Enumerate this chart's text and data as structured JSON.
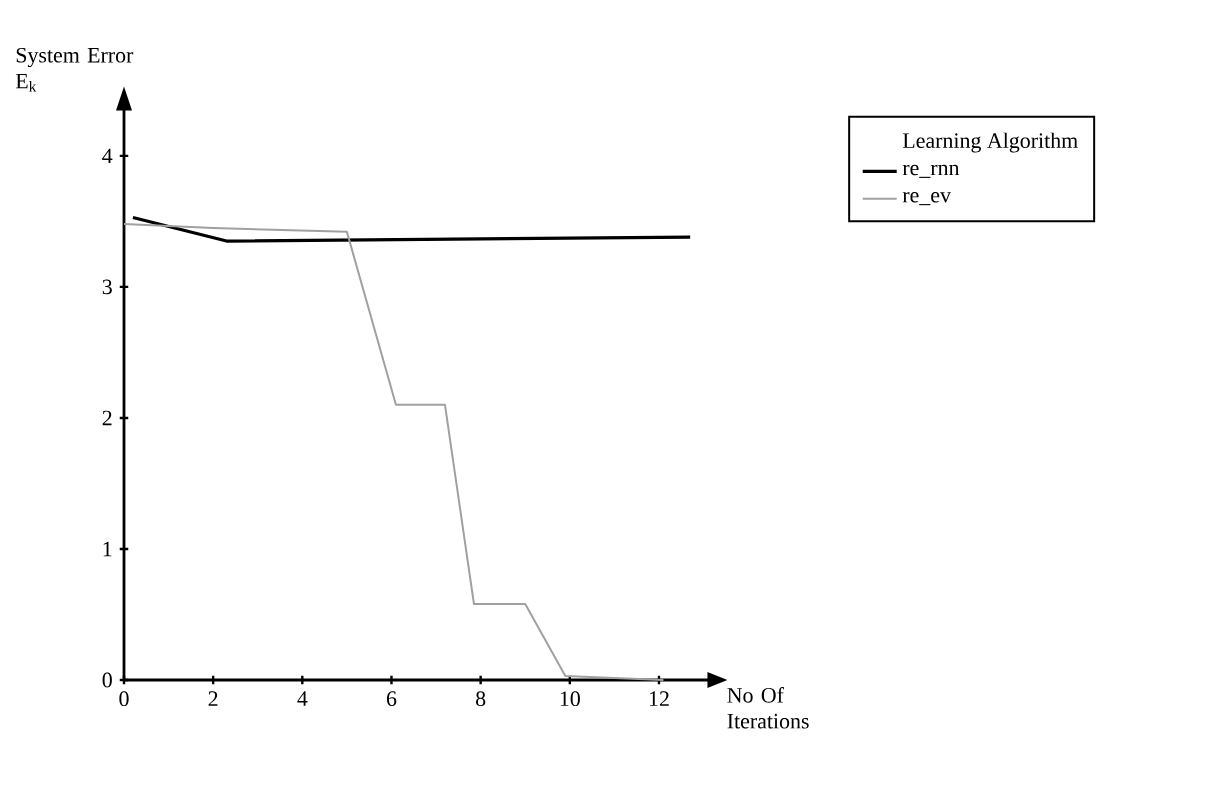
{
  "chart_data": {
    "type": "line",
    "xlabel": "No Of Iterations",
    "ylabel": "System Error E$_{k}$",
    "legend_title": "Learning Algorithm",
    "legend": "right",
    "xlim": [
      0,
      13.1
    ],
    "ylim": [
      0,
      4.35
    ],
    "xticks": [
      0,
      2,
      4,
      6,
      8,
      10,
      12
    ],
    "yticks": [
      0,
      1,
      2,
      3,
      4
    ],
    "series": [
      {
        "name": "re_rnn",
        "color": "#000000",
        "x": [
          0.2,
          2.3,
          12.7
        ],
        "values": [
          3.53,
          3.35,
          3.38
        ]
      },
      {
        "name": "re_ev",
        "color": "#a0a0a0",
        "x": [
          0,
          2,
          5.0,
          6.1,
          7.2,
          7.85,
          9.0,
          9.9,
          12.1
        ],
        "values": [
          3.48,
          3.45,
          3.42,
          2.1,
          2.1,
          0.58,
          0.58,
          0.03,
          0.0
        ]
      }
    ]
  }
}
